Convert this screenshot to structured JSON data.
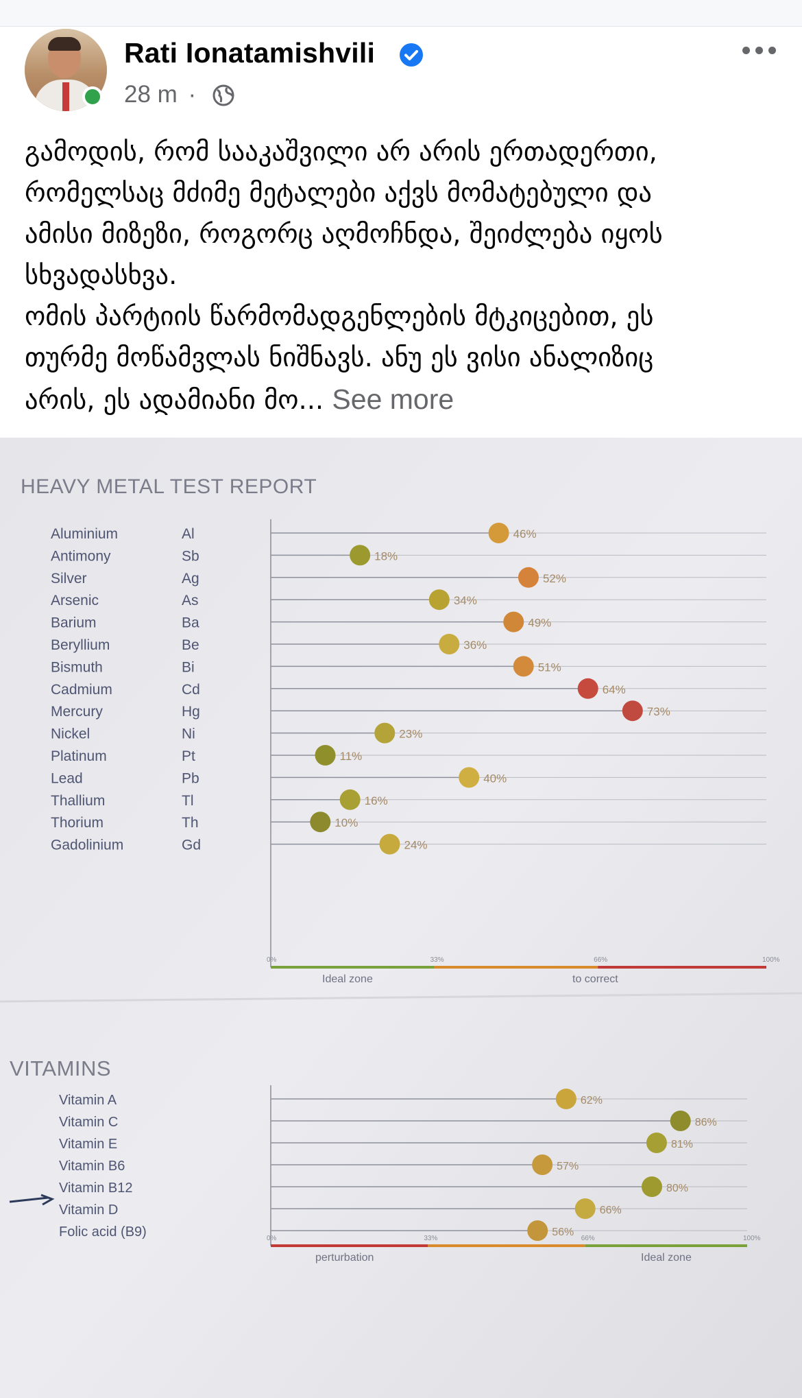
{
  "post": {
    "author": "Rati Ionatamishvili",
    "time": "28 m",
    "separator": "·",
    "icons": {
      "verified": "verified-badge-icon",
      "privacy": "globe-icon",
      "menu": "more-options-icon"
    },
    "text_lines_1": [
      "გამოდის, რომ სააკაშვილი არ არის ერთადერთი,",
      "რომელსაც მძიმე მეტალები აქვს მომატებული და",
      "ამისი მიზეზი, როგორც აღმოჩნდა, შეიძლება იყოს",
      "სხვადასხვა."
    ],
    "text_lines_2": [
      "ომის პარტიის წარმომადგენლების მტკიცებით, ეს",
      "თურმე მოწამვლას ნიშნავს. ანუ ეს ვისი ანალიზიც"
    ],
    "text_last": "არის, ეს ადამიანი მო...",
    "see_more": "See more"
  },
  "colors": {
    "verified": "#1877f2",
    "online": "#31a24c",
    "meta": "#65676b",
    "green_zone": "#7aa23a",
    "red_zone": "#c23a38",
    "orange_zone": "#d98a2a"
  },
  "chart_data": [
    {
      "type": "dot",
      "title": "HEAVY METAL TEST REPORT",
      "categories": [
        "Aluminium",
        "Antimony",
        "Silver",
        "Arsenic",
        "Barium",
        "Beryllium",
        "Bismuth",
        "Cadmium",
        "Mercury",
        "Nickel",
        "Platinum",
        "Lead",
        "Thallium",
        "Thorium",
        "Gadolinium"
      ],
      "symbols": [
        "Al",
        "Sb",
        "Ag",
        "As",
        "Ba",
        "Be",
        "Bi",
        "Cd",
        "Hg",
        "Ni",
        "Pt",
        "Pb",
        "Tl",
        "Th",
        "Gd"
      ],
      "values": [
        46,
        18,
        52,
        34,
        49,
        36,
        51,
        64,
        73,
        23,
        11,
        40,
        16,
        10,
        24
      ],
      "labels": [
        "46%",
        "18%",
        "52%",
        "34%",
        "49%",
        "36%",
        "51%",
        "64%",
        "73%",
        "23%",
        "11%",
        "40%",
        "16%",
        "10%",
        "24%"
      ],
      "colors": [
        "#d49a3a",
        "#9c9a2e",
        "#d5823a",
        "#b8a332",
        "#d08838",
        "#c9ac40",
        "#d38a3a",
        "#c74a3e",
        "#c04a40",
        "#b3a338",
        "#8f8f2c",
        "#cfae42",
        "#a8a034",
        "#8c8a2c",
        "#c6aa3e"
      ],
      "xticks": [
        "0%",
        "33%",
        "66%",
        "100%"
      ],
      "xlim": [
        0,
        100
      ],
      "zone_labels": [
        "Ideal zone",
        "to correct"
      ]
    },
    {
      "type": "dot",
      "title": "VITAMINS",
      "categories": [
        "Vitamin A",
        "Vitamin C",
        "Vitamin E",
        "Vitamin B6",
        "Vitamin B12",
        "Vitamin D",
        "Folic acid (B9)"
      ],
      "values": [
        62,
        86,
        81,
        57,
        80,
        66,
        56
      ],
      "labels": [
        "62%",
        "86%",
        "81%",
        "57%",
        "80%",
        "66%",
        "56%"
      ],
      "colors": [
        "#c9a53c",
        "#8e8c2c",
        "#a6a034",
        "#c69a3c",
        "#9e9a30",
        "#c4aa40",
        "#c4963c"
      ],
      "xticks": [
        "0%",
        "33%",
        "66%",
        "100%"
      ],
      "xlim": [
        0,
        100
      ],
      "zone_labels": [
        "perturbation",
        "Ideal zone"
      ]
    }
  ]
}
